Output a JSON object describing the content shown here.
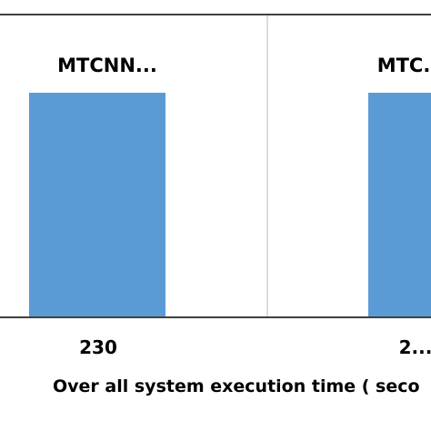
{
  "chart_data": {
    "type": "bar",
    "categories": [
      "MTCNN...",
      "MTC..."
    ],
    "values": [
      230,
      230
    ],
    "tick_labels": [
      "230",
      "2..."
    ],
    "xlabel": "Over all system execution time ( seco",
    "bar_color": "#5b9bd5",
    "plot_border_color": "#000000",
    "separator_color": "#d0d0d0",
    "grid": false,
    "legend": false
  }
}
